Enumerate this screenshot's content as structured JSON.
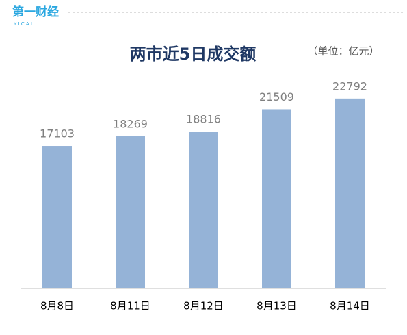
{
  "logo": {
    "name": "第一财经",
    "sub": "Y I C A I"
  },
  "chart_data": {
    "type": "bar",
    "title": "两市近5日成交额",
    "unit": "（单位：亿元）",
    "categories": [
      "8月8日",
      "8月11日",
      "8月12日",
      "8月13日",
      "8月14日"
    ],
    "values": [
      17103,
      18269,
      18816,
      21509,
      22792
    ],
    "color": "#95b3d7",
    "ylim": [
      0,
      25000
    ]
  }
}
